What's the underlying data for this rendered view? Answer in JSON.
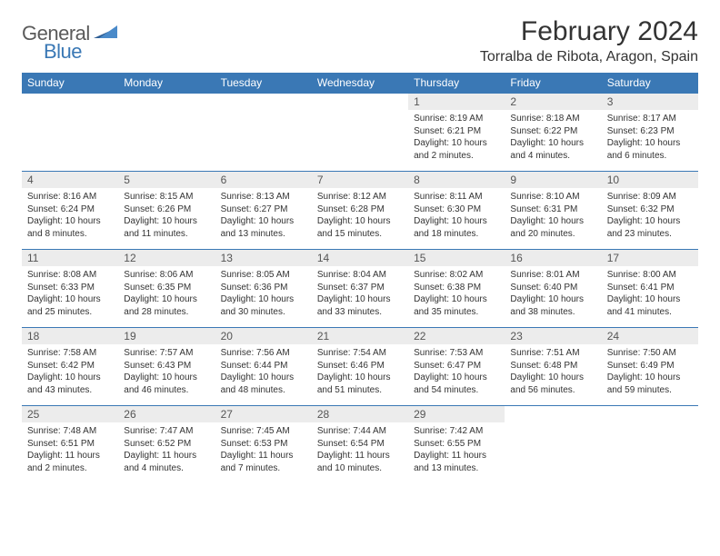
{
  "logo": {
    "text1": "General",
    "text2": "Blue"
  },
  "title": "February 2024",
  "location": "Torralba de Ribota, Aragon, Spain",
  "weekdays": [
    "Sunday",
    "Monday",
    "Tuesday",
    "Wednesday",
    "Thursday",
    "Friday",
    "Saturday"
  ],
  "colors": {
    "header_bg": "#3a78b5",
    "header_text": "#ffffff",
    "daynum_bg": "#ececec",
    "border": "#3a78b5",
    "logo_gray": "#5a5a5a",
    "logo_blue": "#3a78b5"
  },
  "weeks": [
    [
      {
        "n": "",
        "sr": "",
        "ss": "",
        "dl": ""
      },
      {
        "n": "",
        "sr": "",
        "ss": "",
        "dl": ""
      },
      {
        "n": "",
        "sr": "",
        "ss": "",
        "dl": ""
      },
      {
        "n": "",
        "sr": "",
        "ss": "",
        "dl": ""
      },
      {
        "n": "1",
        "sr": "Sunrise: 8:19 AM",
        "ss": "Sunset: 6:21 PM",
        "dl": "Daylight: 10 hours and 2 minutes."
      },
      {
        "n": "2",
        "sr": "Sunrise: 8:18 AM",
        "ss": "Sunset: 6:22 PM",
        "dl": "Daylight: 10 hours and 4 minutes."
      },
      {
        "n": "3",
        "sr": "Sunrise: 8:17 AM",
        "ss": "Sunset: 6:23 PM",
        "dl": "Daylight: 10 hours and 6 minutes."
      }
    ],
    [
      {
        "n": "4",
        "sr": "Sunrise: 8:16 AM",
        "ss": "Sunset: 6:24 PM",
        "dl": "Daylight: 10 hours and 8 minutes."
      },
      {
        "n": "5",
        "sr": "Sunrise: 8:15 AM",
        "ss": "Sunset: 6:26 PM",
        "dl": "Daylight: 10 hours and 11 minutes."
      },
      {
        "n": "6",
        "sr": "Sunrise: 8:13 AM",
        "ss": "Sunset: 6:27 PM",
        "dl": "Daylight: 10 hours and 13 minutes."
      },
      {
        "n": "7",
        "sr": "Sunrise: 8:12 AM",
        "ss": "Sunset: 6:28 PM",
        "dl": "Daylight: 10 hours and 15 minutes."
      },
      {
        "n": "8",
        "sr": "Sunrise: 8:11 AM",
        "ss": "Sunset: 6:30 PM",
        "dl": "Daylight: 10 hours and 18 minutes."
      },
      {
        "n": "9",
        "sr": "Sunrise: 8:10 AM",
        "ss": "Sunset: 6:31 PM",
        "dl": "Daylight: 10 hours and 20 minutes."
      },
      {
        "n": "10",
        "sr": "Sunrise: 8:09 AM",
        "ss": "Sunset: 6:32 PM",
        "dl": "Daylight: 10 hours and 23 minutes."
      }
    ],
    [
      {
        "n": "11",
        "sr": "Sunrise: 8:08 AM",
        "ss": "Sunset: 6:33 PM",
        "dl": "Daylight: 10 hours and 25 minutes."
      },
      {
        "n": "12",
        "sr": "Sunrise: 8:06 AM",
        "ss": "Sunset: 6:35 PM",
        "dl": "Daylight: 10 hours and 28 minutes."
      },
      {
        "n": "13",
        "sr": "Sunrise: 8:05 AM",
        "ss": "Sunset: 6:36 PM",
        "dl": "Daylight: 10 hours and 30 minutes."
      },
      {
        "n": "14",
        "sr": "Sunrise: 8:04 AM",
        "ss": "Sunset: 6:37 PM",
        "dl": "Daylight: 10 hours and 33 minutes."
      },
      {
        "n": "15",
        "sr": "Sunrise: 8:02 AM",
        "ss": "Sunset: 6:38 PM",
        "dl": "Daylight: 10 hours and 35 minutes."
      },
      {
        "n": "16",
        "sr": "Sunrise: 8:01 AM",
        "ss": "Sunset: 6:40 PM",
        "dl": "Daylight: 10 hours and 38 minutes."
      },
      {
        "n": "17",
        "sr": "Sunrise: 8:00 AM",
        "ss": "Sunset: 6:41 PM",
        "dl": "Daylight: 10 hours and 41 minutes."
      }
    ],
    [
      {
        "n": "18",
        "sr": "Sunrise: 7:58 AM",
        "ss": "Sunset: 6:42 PM",
        "dl": "Daylight: 10 hours and 43 minutes."
      },
      {
        "n": "19",
        "sr": "Sunrise: 7:57 AM",
        "ss": "Sunset: 6:43 PM",
        "dl": "Daylight: 10 hours and 46 minutes."
      },
      {
        "n": "20",
        "sr": "Sunrise: 7:56 AM",
        "ss": "Sunset: 6:44 PM",
        "dl": "Daylight: 10 hours and 48 minutes."
      },
      {
        "n": "21",
        "sr": "Sunrise: 7:54 AM",
        "ss": "Sunset: 6:46 PM",
        "dl": "Daylight: 10 hours and 51 minutes."
      },
      {
        "n": "22",
        "sr": "Sunrise: 7:53 AM",
        "ss": "Sunset: 6:47 PM",
        "dl": "Daylight: 10 hours and 54 minutes."
      },
      {
        "n": "23",
        "sr": "Sunrise: 7:51 AM",
        "ss": "Sunset: 6:48 PM",
        "dl": "Daylight: 10 hours and 56 minutes."
      },
      {
        "n": "24",
        "sr": "Sunrise: 7:50 AM",
        "ss": "Sunset: 6:49 PM",
        "dl": "Daylight: 10 hours and 59 minutes."
      }
    ],
    [
      {
        "n": "25",
        "sr": "Sunrise: 7:48 AM",
        "ss": "Sunset: 6:51 PM",
        "dl": "Daylight: 11 hours and 2 minutes."
      },
      {
        "n": "26",
        "sr": "Sunrise: 7:47 AM",
        "ss": "Sunset: 6:52 PM",
        "dl": "Daylight: 11 hours and 4 minutes."
      },
      {
        "n": "27",
        "sr": "Sunrise: 7:45 AM",
        "ss": "Sunset: 6:53 PM",
        "dl": "Daylight: 11 hours and 7 minutes."
      },
      {
        "n": "28",
        "sr": "Sunrise: 7:44 AM",
        "ss": "Sunset: 6:54 PM",
        "dl": "Daylight: 11 hours and 10 minutes."
      },
      {
        "n": "29",
        "sr": "Sunrise: 7:42 AM",
        "ss": "Sunset: 6:55 PM",
        "dl": "Daylight: 11 hours and 13 minutes."
      },
      {
        "n": "",
        "sr": "",
        "ss": "",
        "dl": ""
      },
      {
        "n": "",
        "sr": "",
        "ss": "",
        "dl": ""
      }
    ]
  ]
}
